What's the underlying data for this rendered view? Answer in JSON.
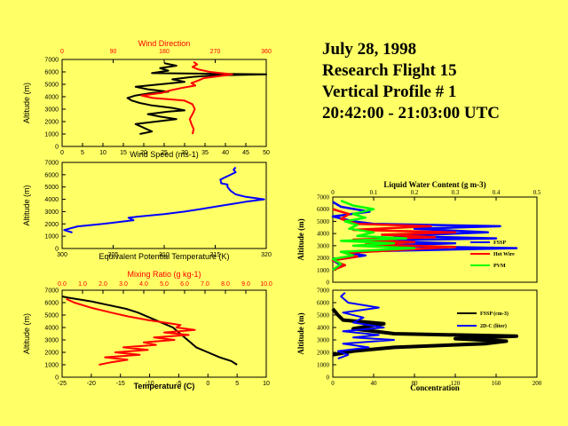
{
  "title": {
    "date": "July 28, 1998",
    "flight": "Research Flight 15",
    "profile": "Vertical Profile # 1",
    "time_range": "20:42:00 - 21:03:00 UTC"
  },
  "colors": {
    "background": "#ffff66",
    "black": "#000000",
    "red": "#ff0000",
    "blue": "#0000ff",
    "green": "#00ff00",
    "top_axis_red": "#ff0000"
  },
  "chart_data": [
    {
      "id": "wind",
      "type": "line",
      "title": "Wind Direction",
      "xlabel": "Wind Speed (ms-1)",
      "ylabel": "Altitude (m)",
      "xlim": [
        0,
        50
      ],
      "x_ticks": [
        "0",
        "5",
        "10",
        "15",
        "20",
        "25",
        "30",
        "35",
        "40",
        "45",
        "50"
      ],
      "top_xlim": [
        0,
        360
      ],
      "top_ticks": [
        "0",
        "90",
        "180",
        "270",
        "360"
      ],
      "ylim": [
        0,
        7000
      ],
      "y_ticks": [
        "0",
        "1000",
        "2000",
        "3000",
        "4000",
        "5000",
        "6000",
        "7000"
      ],
      "series": [
        {
          "name": "Wind Speed",
          "color": "#000000",
          "axis": "bottom",
          "points": [
            [
              19,
              1000
            ],
            [
              22,
              1200
            ],
            [
              20,
              1500
            ],
            [
              18,
              1800
            ],
            [
              23,
              2000
            ],
            [
              28,
              2200
            ],
            [
              24,
              2400
            ],
            [
              21,
              2600
            ],
            [
              26,
              2800
            ],
            [
              30,
              2900
            ],
            [
              27,
              3100
            ],
            [
              22,
              3300
            ],
            [
              19,
              3500
            ],
            [
              17,
              3700
            ],
            [
              16,
              3900
            ],
            [
              18,
              4100
            ],
            [
              22,
              4300
            ],
            [
              26,
              4400
            ],
            [
              21,
              4600
            ],
            [
              18,
              4800
            ],
            [
              24,
              5000
            ],
            [
              30,
              5200
            ],
            [
              27,
              5400
            ],
            [
              32,
              5600
            ],
            [
              36,
              5700
            ],
            [
              50,
              5800
            ],
            [
              22,
              5900
            ],
            [
              26,
              6100
            ],
            [
              24,
              6300
            ],
            [
              28,
              6500
            ],
            [
              25,
              6700
            ]
          ]
        },
        {
          "name": "Wind Direction",
          "color": "#ff0000",
          "axis": "top",
          "points": [
            [
              230,
              1000
            ],
            [
              232,
              1400
            ],
            [
              228,
              1800
            ],
            [
              225,
              2200
            ],
            [
              230,
              2600
            ],
            [
              234,
              3000
            ],
            [
              230,
              3400
            ],
            [
              215,
              3700
            ],
            [
              160,
              3900
            ],
            [
              140,
              4100
            ],
            [
              175,
              4300
            ],
            [
              190,
              4500
            ],
            [
              210,
              4700
            ],
            [
              235,
              4900
            ],
            [
              228,
              5100
            ],
            [
              240,
              5300
            ],
            [
              250,
              5500
            ],
            [
              300,
              5800
            ],
            [
              260,
              6000
            ],
            [
              240,
              6200
            ],
            [
              230,
              6400
            ],
            [
              238,
              6600
            ],
            [
              232,
              6800
            ]
          ]
        }
      ]
    },
    {
      "id": "theta_e",
      "type": "line",
      "xlabel": "Equivalent Potential Temperature (K)",
      "ylabel": "Altitude (m)",
      "xlim": [
        300,
        320
      ],
      "x_ticks": [
        "300",
        "305",
        "310",
        "315",
        "320"
      ],
      "ylim": [
        0,
        7000
      ],
      "y_ticks": [
        "0",
        "1000",
        "2000",
        "3000",
        "4000",
        "5000",
        "6000",
        "7000"
      ],
      "series": [
        {
          "name": "Theta-e",
          "color": "#0000ff",
          "points": [
            [
              301,
              1300
            ],
            [
              300.2,
              1500
            ],
            [
              301.5,
              1800
            ],
            [
              304,
              2000
            ],
            [
              306,
              2200
            ],
            [
              307,
              2300
            ],
            [
              306.5,
              2500
            ],
            [
              307.5,
              2600
            ],
            [
              310,
              2800
            ],
            [
              312,
              3000
            ],
            [
              313.5,
              3200
            ],
            [
              315,
              3400
            ],
            [
              316.5,
              3600
            ],
            [
              318,
              3800
            ],
            [
              319.8,
              4000
            ],
            [
              318,
              4200
            ],
            [
              317,
              4400
            ],
            [
              316.5,
              4700
            ],
            [
              316.2,
              5000
            ],
            [
              316.2,
              5200
            ],
            [
              315.6,
              5300
            ],
            [
              315.5,
              5600
            ],
            [
              316,
              5800
            ],
            [
              316.5,
              6000
            ],
            [
              317,
              6200
            ],
            [
              316.8,
              6400
            ],
            [
              317,
              6600
            ]
          ]
        }
      ]
    },
    {
      "id": "temp_mix",
      "type": "line",
      "title": "Mixing Ratio (g kg-1)",
      "xlabel": "Temperature (C)",
      "ylabel": "Altitude (m)",
      "xlim": [
        -25,
        10
      ],
      "x_ticks": [
        "-25",
        "-20",
        "-15",
        "-10",
        "-5",
        "0",
        "5",
        "10"
      ],
      "top_xlim": [
        0,
        10
      ],
      "top_ticks": [
        "0.0",
        "1.0",
        "2.0",
        "3.0",
        "4.0",
        "5.0",
        "6.0",
        "7.0",
        "8.0",
        "9.0",
        "10.0"
      ],
      "ylim": [
        0,
        7000
      ],
      "y_ticks": [
        "0",
        "1000",
        "2000",
        "3000",
        "4000",
        "5000",
        "6000",
        "7000"
      ],
      "series": [
        {
          "name": "Temperature",
          "color": "#000000",
          "axis": "bottom",
          "points": [
            [
              5,
              1000
            ],
            [
              4,
              1300
            ],
            [
              2,
              1600
            ],
            [
              0,
              2000
            ],
            [
              -2,
              2400
            ],
            [
              -3,
              2800
            ],
            [
              -4,
              3200
            ],
            [
              -5,
              3600
            ],
            [
              -6,
              4000
            ],
            [
              -8,
              4400
            ],
            [
              -10,
              4800
            ],
            [
              -12,
              5200
            ],
            [
              -14,
              5500
            ],
            [
              -17,
              5800
            ],
            [
              -20,
              6100
            ],
            [
              -24,
              6400
            ],
            [
              -25,
              6500
            ]
          ]
        },
        {
          "name": "Mixing Ratio",
          "color": "#ff0000",
          "axis": "top",
          "points": [
            [
              1.8,
              1000
            ],
            [
              2.4,
              1200
            ],
            [
              3.2,
              1400
            ],
            [
              2.1,
              1600
            ],
            [
              3.8,
              1800
            ],
            [
              2.6,
              2000
            ],
            [
              4.2,
              2200
            ],
            [
              3.0,
              2400
            ],
            [
              4.6,
              2600
            ],
            [
              4.0,
              2800
            ],
            [
              5.5,
              3000
            ],
            [
              4.5,
              3200
            ],
            [
              6.2,
              3400
            ],
            [
              5.0,
              3600
            ],
            [
              6.5,
              3800
            ],
            [
              5.6,
              4000
            ],
            [
              5.8,
              4200
            ],
            [
              5.0,
              4400
            ],
            [
              4.2,
              4600
            ],
            [
              3.2,
              4900
            ],
            [
              2.4,
              5200
            ],
            [
              1.4,
              5600
            ],
            [
              0.6,
              6000
            ],
            [
              0.2,
              6300
            ]
          ]
        }
      ]
    },
    {
      "id": "lwc",
      "type": "line",
      "title": "Liquid Water Content (g m-3)",
      "ylabel": "Altitude (m)",
      "xlim": [
        0,
        0.5
      ],
      "top_ticks": [
        "0",
        "0.1",
        "0.2",
        "0.3",
        "0.4",
        "0.5"
      ],
      "ylim": [
        0,
        7000
      ],
      "y_ticks": [
        "0",
        "1000",
        "2000",
        "3000",
        "4000",
        "5000",
        "6000",
        "7000"
      ],
      "legend": [
        "FSSP",
        "Hot Wire",
        "PVM"
      ],
      "series": [
        {
          "name": "FSSP",
          "color": "#0000ff",
          "points": [
            [
              0.0,
              1000
            ],
            [
              0.02,
              1400
            ],
            [
              0.0,
              1800
            ],
            [
              0.08,
              2200
            ],
            [
              0.02,
              2500
            ],
            [
              0.45,
              2800
            ],
            [
              0.1,
              3000
            ],
            [
              0.3,
              3200
            ],
            [
              0.05,
              3400
            ],
            [
              0.4,
              3600
            ],
            [
              0.15,
              3800
            ],
            [
              0.38,
              4100
            ],
            [
              0.2,
              4400
            ],
            [
              0.41,
              4600
            ],
            [
              0.1,
              4800
            ],
            [
              0.05,
              5000
            ],
            [
              0.0,
              5400
            ],
            [
              0.09,
              5800
            ],
            [
              0.02,
              6200
            ],
            [
              0.0,
              6600
            ]
          ]
        },
        {
          "name": "Hot Wire",
          "color": "#ff0000",
          "points": [
            [
              0.0,
              1000
            ],
            [
              0.03,
              1400
            ],
            [
              0.0,
              1800
            ],
            [
              0.06,
              2100
            ],
            [
              0.03,
              2400
            ],
            [
              0.3,
              2900
            ],
            [
              0.08,
              3100
            ],
            [
              0.2,
              3300
            ],
            [
              0.05,
              3500
            ],
            [
              0.25,
              3700
            ],
            [
              0.12,
              3900
            ],
            [
              0.3,
              4100
            ],
            [
              0.05,
              4300
            ],
            [
              0.24,
              4600
            ],
            [
              0.06,
              4800
            ],
            [
              0.02,
              5200
            ],
            [
              0.04,
              5600
            ],
            [
              0.0,
              6000
            ]
          ]
        },
        {
          "name": "PVM",
          "color": "#00ff00",
          "points": [
            [
              0.0,
              1000
            ],
            [
              0.02,
              1500
            ],
            [
              0.0,
              1900
            ],
            [
              0.05,
              2200
            ],
            [
              0.02,
              2500
            ],
            [
              0.2,
              2800
            ],
            [
              0.05,
              3000
            ],
            [
              0.15,
              3200
            ],
            [
              0.02,
              3400
            ],
            [
              0.18,
              3600
            ],
            [
              0.06,
              3800
            ],
            [
              0.1,
              4100
            ],
            [
              0.04,
              4400
            ],
            [
              0.06,
              4700
            ],
            [
              0.03,
              5000
            ],
            [
              0.08,
              5300
            ],
            [
              0.05,
              5600
            ],
            [
              0.1,
              6000
            ],
            [
              0.05,
              6300
            ],
            [
              0.02,
              6700
            ]
          ]
        }
      ]
    },
    {
      "id": "conc",
      "type": "line",
      "xlabel": "Concentration",
      "ylabel": "Altitude (m)",
      "xlim": [
        0,
        200
      ],
      "x_ticks": [
        "0",
        "40",
        "80",
        "120",
        "160",
        "200"
      ],
      "ylim": [
        0,
        7000
      ],
      "y_ticks": [
        "0",
        "1000",
        "2000",
        "3000",
        "4000",
        "5000",
        "6000",
        "7000"
      ],
      "legend": [
        "FSSP (cm-3)",
        "2D-C (liter)"
      ],
      "series": [
        {
          "name": "FSSP (cm-3)",
          "color": "#000000",
          "points": [
            [
              0,
              1800
            ],
            [
              20,
              2100
            ],
            [
              60,
              2400
            ],
            [
              150,
              2700
            ],
            [
              170,
              2900
            ],
            [
              120,
              3100
            ],
            [
              180,
              3300
            ],
            [
              60,
              3500
            ],
            [
              20,
              3900
            ],
            [
              50,
              4300
            ],
            [
              10,
              4600
            ],
            [
              5,
              5000
            ],
            [
              0,
              5500
            ]
          ]
        },
        {
          "name": "2D-C (liter)",
          "color": "#0000ff",
          "points": [
            [
              5,
              1500
            ],
            [
              15,
              1800
            ],
            [
              5,
              2100
            ],
            [
              35,
              2400
            ],
            [
              10,
              2700
            ],
            [
              60,
              3000
            ],
            [
              20,
              3200
            ],
            [
              45,
              3400
            ],
            [
              10,
              3700
            ],
            [
              50,
              4000
            ],
            [
              20,
              4400
            ],
            [
              30,
              4800
            ],
            [
              10,
              5200
            ],
            [
              45,
              5600
            ],
            [
              15,
              6000
            ],
            [
              8,
              6500
            ],
            [
              12,
              6800
            ]
          ]
        }
      ]
    }
  ]
}
